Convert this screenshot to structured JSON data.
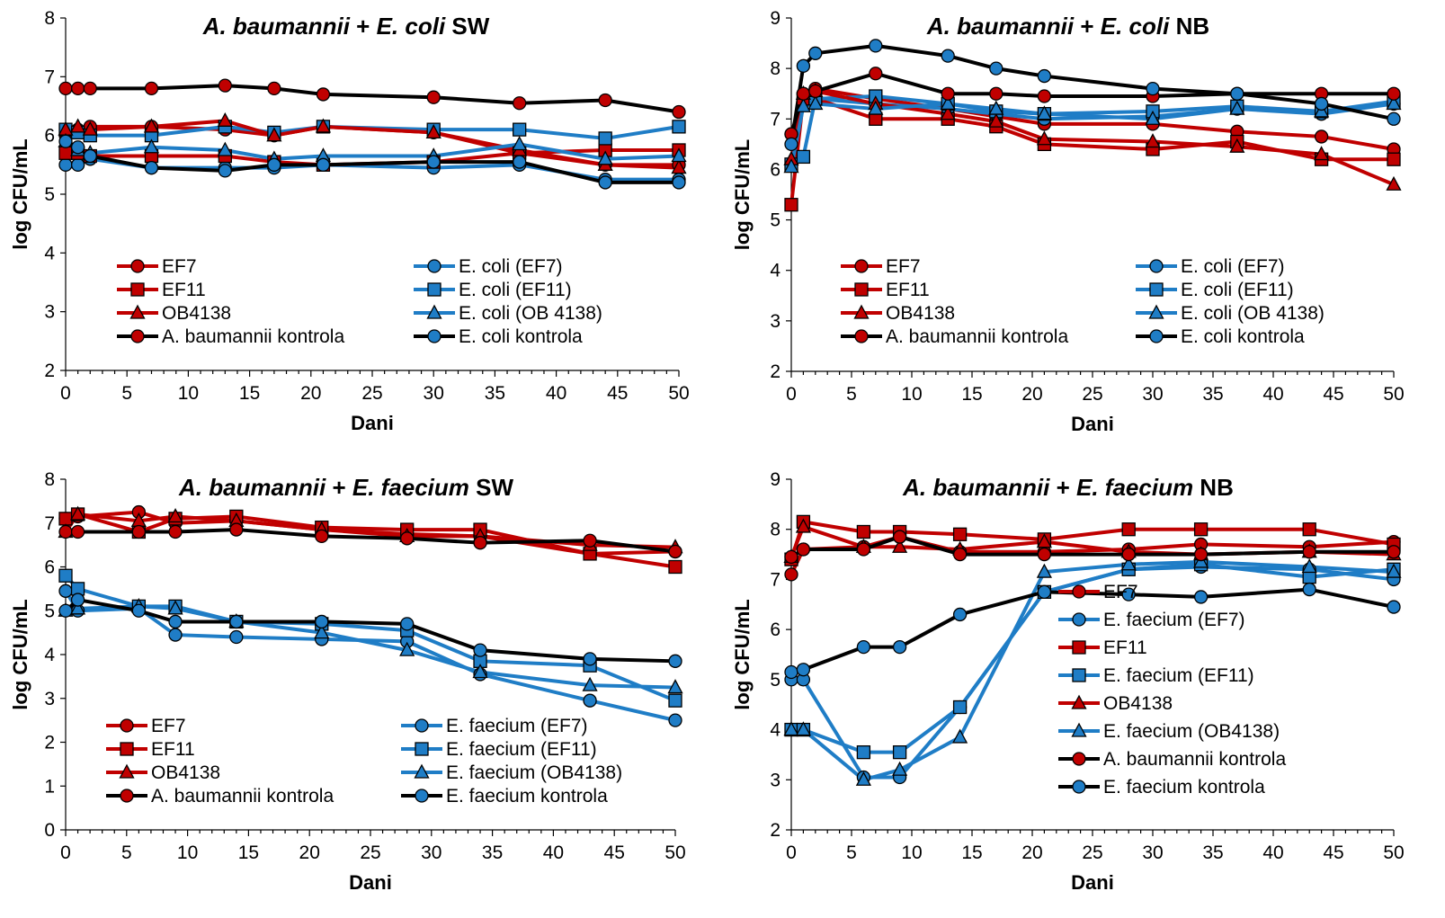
{
  "colors": {
    "red": "#C00000",
    "blue": "#1F7DC6",
    "black": "#000000"
  },
  "chart_data": [
    {
      "type": "line",
      "title_part_a": "A. baumannii",
      "title_part_b": " + ",
      "title_part_c": "E. coli",
      "title_part_d": " SW",
      "xlabel": "Dani",
      "ylabel": "log CFU/mL",
      "xlim": [
        0,
        50
      ],
      "ylim": [
        2,
        8
      ],
      "xticks": [
        "0",
        "5",
        "10",
        "15",
        "20",
        "25",
        "30",
        "35",
        "40",
        "45",
        "50"
      ],
      "yticks": [
        "2",
        "3",
        "4",
        "5",
        "6",
        "7",
        "8"
      ],
      "legend_layout": "two-columns-bottom",
      "series": [
        {
          "name": "EF7",
          "color": "red",
          "marker": "circle",
          "x": [
            0,
            1,
            2,
            7,
            13,
            17,
            21,
            30,
            37,
            44,
            50
          ],
          "y": [
            6.0,
            6.1,
            6.15,
            6.15,
            6.1,
            6.0,
            6.15,
            6.05,
            5.7,
            5.5,
            5.5
          ]
        },
        {
          "name": "E. coli (EF7)",
          "color": "blue",
          "marker": "circle",
          "x": [
            0,
            1,
            2,
            7,
            13,
            17,
            21,
            30,
            37,
            44,
            50
          ],
          "y": [
            5.5,
            5.5,
            5.6,
            5.45,
            5.45,
            5.45,
            5.5,
            5.45,
            5.5,
            5.25,
            5.25
          ]
        },
        {
          "name": "EF11",
          "color": "red",
          "marker": "square",
          "x": [
            0,
            1,
            2,
            7,
            13,
            17,
            21,
            30,
            37,
            44,
            50
          ],
          "y": [
            5.7,
            5.7,
            5.65,
            5.65,
            5.65,
            5.55,
            5.5,
            5.55,
            5.7,
            5.75,
            5.75
          ]
        },
        {
          "name": "E. coli (EF11)",
          "color": "blue",
          "marker": "square",
          "x": [
            0,
            1,
            2,
            7,
            13,
            17,
            21,
            30,
            37,
            44,
            50
          ],
          "y": [
            6.1,
            6.05,
            6.0,
            6.0,
            6.15,
            6.05,
            6.15,
            6.1,
            6.1,
            5.95,
            6.15
          ]
        },
        {
          "name": "OB4138",
          "color": "red",
          "marker": "triangle",
          "x": [
            0,
            1,
            2,
            7,
            13,
            17,
            21,
            30,
            37,
            44,
            50
          ],
          "y": [
            6.1,
            6.15,
            6.1,
            6.15,
            6.25,
            6.0,
            6.15,
            6.05,
            5.75,
            5.5,
            5.45
          ]
        },
        {
          "name": "E. coli (OB 4138)",
          "color": "blue",
          "marker": "triangle",
          "x": [
            0,
            1,
            2,
            7,
            13,
            17,
            21,
            30,
            37,
            44,
            50
          ],
          "y": [
            5.9,
            5.75,
            5.7,
            5.8,
            5.75,
            5.6,
            5.65,
            5.65,
            5.85,
            5.6,
            5.65
          ]
        },
        {
          "name": "A. baumannii kontrola",
          "color": "black",
          "marker": "circle",
          "x": [
            0,
            1,
            2,
            7,
            13,
            17,
            21,
            30,
            37,
            44,
            50
          ],
          "y": [
            6.8,
            6.8,
            6.8,
            6.8,
            6.85,
            6.8,
            6.7,
            6.65,
            6.55,
            6.6,
            6.4
          ]
        },
        {
          "name": "E. coli kontrola",
          "color": "black",
          "marker": "circle",
          "x": [
            0,
            1,
            2,
            7,
            13,
            17,
            21,
            30,
            37,
            44,
            50
          ],
          "y": [
            5.9,
            5.8,
            5.65,
            5.45,
            5.4,
            5.5,
            5.5,
            5.55,
            5.55,
            5.2,
            5.2
          ]
        }
      ]
    },
    {
      "type": "line",
      "title_part_a": "A. baumannii",
      "title_part_b": " + ",
      "title_part_c": "E. coli",
      "title_part_d": " NB",
      "xlabel": "Dani",
      "ylabel": "log CFU/mL",
      "xlim": [
        0,
        50
      ],
      "ylim": [
        2,
        9
      ],
      "xticks": [
        "0",
        "5",
        "10",
        "15",
        "20",
        "25",
        "30",
        "35",
        "40",
        "45",
        "50"
      ],
      "yticks": [
        "2",
        "3",
        "4",
        "5",
        "6",
        "7",
        "8",
        "9"
      ],
      "legend_layout": "two-columns-bottom",
      "series": [
        {
          "name": "EF7",
          "color": "red",
          "marker": "circle",
          "x": [
            0,
            1,
            2,
            7,
            13,
            17,
            21,
            30,
            37,
            44,
            50
          ],
          "y": [
            6.7,
            7.5,
            7.6,
            7.4,
            7.2,
            7.05,
            6.9,
            6.9,
            6.75,
            6.65,
            6.4
          ]
        },
        {
          "name": "E. coli (EF7)",
          "color": "blue",
          "marker": "circle",
          "x": [
            0,
            1,
            2,
            7,
            13,
            17,
            21,
            30,
            37,
            44,
            50
          ],
          "y": [
            6.1,
            7.4,
            7.4,
            7.3,
            7.2,
            7.1,
            7.0,
            7.05,
            7.2,
            7.1,
            7.3
          ]
        },
        {
          "name": "EF11",
          "color": "red",
          "marker": "square",
          "x": [
            0,
            1,
            2,
            7,
            13,
            17,
            21,
            30,
            37,
            44,
            50
          ],
          "y": [
            5.3,
            7.4,
            7.4,
            7.0,
            7.0,
            6.85,
            6.5,
            6.4,
            6.55,
            6.2,
            6.2
          ]
        },
        {
          "name": "E. coli (EF11)",
          "color": "blue",
          "marker": "square",
          "x": [
            0,
            1,
            2,
            7,
            13,
            17,
            21,
            30,
            37,
            44,
            50
          ],
          "y": [
            6.1,
            6.25,
            7.4,
            7.45,
            7.3,
            7.15,
            7.1,
            7.15,
            7.25,
            7.15,
            7.35
          ]
        },
        {
          "name": "OB4138",
          "color": "red",
          "marker": "triangle",
          "x": [
            0,
            1,
            2,
            7,
            13,
            17,
            21,
            30,
            37,
            44,
            50
          ],
          "y": [
            6.2,
            7.5,
            7.55,
            7.3,
            7.1,
            6.95,
            6.6,
            6.55,
            6.45,
            6.3,
            5.7
          ]
        },
        {
          "name": "E. coli (OB 4138)",
          "color": "blue",
          "marker": "triangle",
          "x": [
            0,
            1,
            2,
            7,
            13,
            17,
            21,
            30,
            37,
            44,
            50
          ],
          "y": [
            6.05,
            7.25,
            7.3,
            7.2,
            7.3,
            7.2,
            7.1,
            7.0,
            7.2,
            7.15,
            7.3
          ]
        },
        {
          "name": "A. baumannii kontrola",
          "color": "black",
          "marker": "circle",
          "x": [
            0,
            1,
            2,
            7,
            13,
            17,
            21,
            30,
            37,
            44,
            50
          ],
          "y": [
            6.7,
            7.5,
            7.55,
            7.9,
            7.5,
            7.5,
            7.45,
            7.45,
            7.5,
            7.5,
            7.5
          ]
        },
        {
          "name": "E. coli kontrola",
          "color": "black",
          "marker": "circle",
          "x": [
            0,
            1,
            2,
            7,
            13,
            17,
            21,
            30,
            37,
            44,
            50
          ],
          "y": [
            6.5,
            8.05,
            8.3,
            8.45,
            8.25,
            8.0,
            7.85,
            7.6,
            7.5,
            7.3,
            7.0
          ]
        }
      ]
    },
    {
      "type": "line",
      "title_part_a": "A. baumannii",
      "title_part_b": " + ",
      "title_part_c": "E. faecium",
      "title_part_d": " SW",
      "xlabel": "Dani",
      "ylabel": "log CFU/mL",
      "xlim": [
        0,
        50
      ],
      "ylim": [
        0,
        8
      ],
      "xticks": [
        "0",
        "5",
        "10",
        "15",
        "20",
        "25",
        "30",
        "35",
        "40",
        "45",
        "50"
      ],
      "yticks": [
        "0",
        "1",
        "2",
        "3",
        "4",
        "5",
        "6",
        "7",
        "8"
      ],
      "legend_layout": "two-columns-bottom",
      "series": [
        {
          "name": "EF7",
          "color": "red",
          "marker": "circle",
          "x": [
            0,
            1,
            6,
            9,
            14,
            21,
            28,
            34,
            43,
            50
          ],
          "y": [
            7.1,
            7.15,
            7.25,
            7.0,
            7.05,
            6.85,
            6.75,
            6.7,
            6.3,
            6.35
          ]
        },
        {
          "name": "E. faecium (EF7)",
          "color": "blue",
          "marker": "circle",
          "x": [
            0,
            1,
            6,
            9,
            14,
            21,
            28,
            34,
            43,
            50
          ],
          "y": [
            5.45,
            5.0,
            5.05,
            4.45,
            4.4,
            4.35,
            4.3,
            3.55,
            2.95,
            2.5
          ]
        },
        {
          "name": "EF11",
          "color": "red",
          "marker": "square",
          "x": [
            0,
            1,
            6,
            9,
            14,
            21,
            28,
            34,
            43,
            50
          ],
          "y": [
            7.1,
            7.2,
            6.8,
            7.1,
            7.15,
            6.9,
            6.85,
            6.85,
            6.3,
            6.0
          ]
        },
        {
          "name": "E. faecium (EF11)",
          "color": "blue",
          "marker": "square",
          "x": [
            0,
            1,
            6,
            9,
            14,
            21,
            28,
            34,
            43,
            50
          ],
          "y": [
            5.8,
            5.5,
            5.1,
            5.1,
            4.75,
            4.7,
            4.55,
            3.85,
            3.75,
            2.95
          ]
        },
        {
          "name": "OB4138",
          "color": "red",
          "marker": "triangle",
          "x": [
            0,
            1,
            6,
            9,
            14,
            21,
            28,
            34,
            43,
            50
          ],
          "y": [
            6.8,
            7.2,
            7.05,
            7.15,
            7.05,
            6.85,
            6.7,
            6.7,
            6.5,
            6.45
          ]
        },
        {
          "name": "E. faecium (OB4138)",
          "color": "blue",
          "marker": "triangle",
          "x": [
            0,
            1,
            6,
            9,
            14,
            21,
            28,
            34,
            43,
            50
          ],
          "y": [
            5.0,
            5.05,
            5.1,
            5.05,
            4.75,
            4.5,
            4.1,
            3.6,
            3.3,
            3.25
          ]
        },
        {
          "name": "A. baumannii kontrola",
          "color": "black",
          "marker": "circle",
          "x": [
            0,
            1,
            6,
            9,
            14,
            21,
            28,
            34,
            43,
            50
          ],
          "y": [
            6.8,
            6.8,
            6.8,
            6.8,
            6.85,
            6.7,
            6.65,
            6.55,
            6.6,
            6.35
          ]
        },
        {
          "name": "E. faecium kontrola",
          "color": "black",
          "marker": "circle",
          "x": [
            0,
            1,
            6,
            9,
            14,
            21,
            28,
            34,
            43,
            50
          ],
          "y": [
            5.0,
            5.25,
            5.0,
            4.75,
            4.75,
            4.75,
            4.7,
            4.1,
            3.9,
            3.85
          ]
        }
      ]
    },
    {
      "type": "line",
      "title_part_a": "A. baumannii",
      "title_part_b": " + ",
      "title_part_c": "E. faecium",
      "title_part_d": " NB",
      "xlabel": "Dani",
      "ylabel": "log CFU/mL",
      "xlim": [
        0,
        50
      ],
      "ylim": [
        2,
        9
      ],
      "xticks": [
        "0",
        "5",
        "10",
        "15",
        "20",
        "25",
        "30",
        "35",
        "40",
        "45",
        "50"
      ],
      "yticks": [
        "2",
        "3",
        "4",
        "5",
        "6",
        "7",
        "8",
        "9"
      ],
      "legend_layout": "single-column-right",
      "series": [
        {
          "name": "EF7",
          "color": "red",
          "marker": "circle",
          "x": [
            0,
            1,
            6,
            9,
            14,
            21,
            28,
            34,
            43,
            50
          ],
          "y": [
            7.1,
            7.6,
            7.65,
            7.85,
            7.55,
            7.55,
            7.6,
            7.7,
            7.65,
            7.75
          ]
        },
        {
          "name": "E. faecium (EF7)",
          "color": "blue",
          "marker": "circle",
          "x": [
            0,
            1,
            6,
            9,
            14,
            21,
            28,
            34,
            43,
            50
          ],
          "y": [
            5.0,
            5.0,
            3.05,
            3.05,
            4.45,
            6.75,
            7.2,
            7.25,
            7.2,
            7.0
          ]
        },
        {
          "name": "EF11",
          "color": "red",
          "marker": "square",
          "x": [
            0,
            1,
            6,
            9,
            14,
            21,
            28,
            34,
            43,
            50
          ],
          "y": [
            7.4,
            8.15,
            7.95,
            7.95,
            7.9,
            7.8,
            8.0,
            8.0,
            8.0,
            7.7
          ]
        },
        {
          "name": "E. faecium (EF11)",
          "color": "blue",
          "marker": "square",
          "x": [
            0,
            1,
            6,
            9,
            14,
            21,
            28,
            34,
            43,
            50
          ],
          "y": [
            4.0,
            4.0,
            3.55,
            3.55,
            4.45,
            6.75,
            7.2,
            7.3,
            7.05,
            7.2
          ]
        },
        {
          "name": "OB4138",
          "color": "red",
          "marker": "triangle",
          "x": [
            0,
            1,
            6,
            9,
            14,
            21,
            28,
            34,
            43,
            50
          ],
          "y": [
            7.45,
            8.05,
            7.65,
            7.65,
            7.6,
            7.75,
            7.55,
            7.5,
            7.55,
            7.5
          ]
        },
        {
          "name": "E. faecium (OB4138)",
          "color": "blue",
          "marker": "triangle",
          "x": [
            0,
            1,
            6,
            9,
            14,
            21,
            28,
            34,
            43,
            50
          ],
          "y": [
            4.0,
            4.0,
            3.0,
            3.2,
            3.85,
            7.15,
            7.3,
            7.35,
            7.25,
            7.15
          ]
        },
        {
          "name": "A. baumannii kontrola",
          "color": "black",
          "marker": "circle",
          "x": [
            0,
            1,
            6,
            9,
            14,
            21,
            28,
            34,
            43,
            50
          ],
          "y": [
            7.45,
            7.6,
            7.6,
            7.85,
            7.5,
            7.5,
            7.5,
            7.5,
            7.55,
            7.55
          ]
        },
        {
          "name": "E. faecium kontrola",
          "color": "black",
          "marker": "circle",
          "x": [
            0,
            1,
            6,
            9,
            14,
            21,
            28,
            34,
            43,
            50
          ],
          "y": [
            5.15,
            5.2,
            5.65,
            5.65,
            6.3,
            6.75,
            6.7,
            6.65,
            6.8,
            6.45
          ]
        }
      ]
    }
  ]
}
